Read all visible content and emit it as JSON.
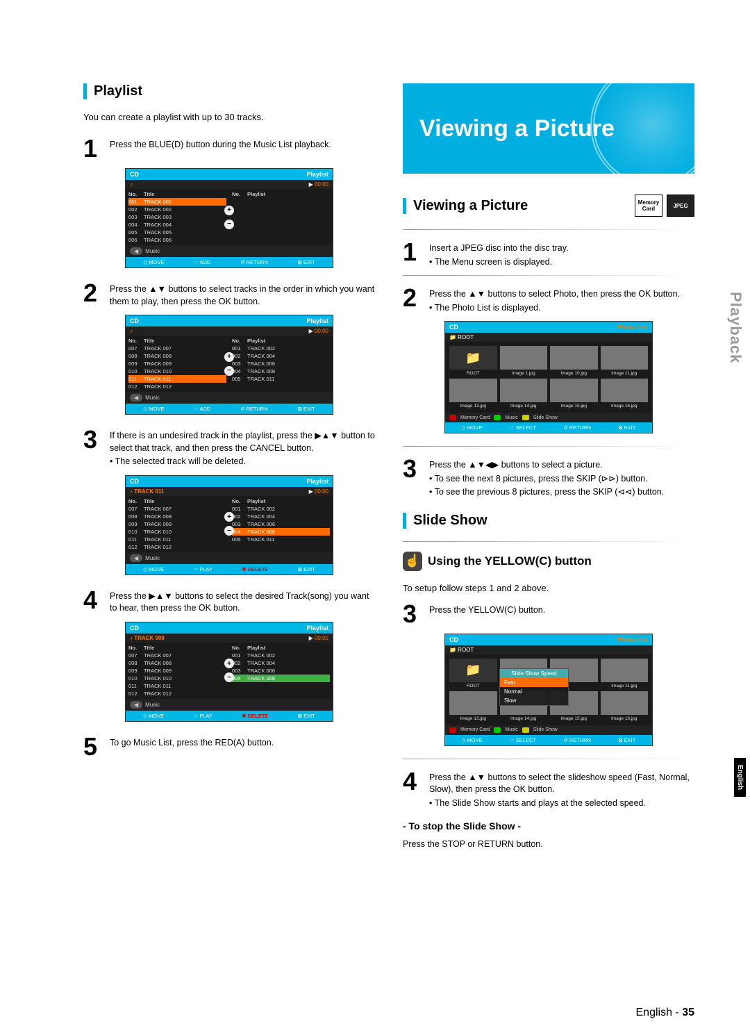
{
  "leftColumn": {
    "sectionTitle": "Playlist",
    "intro": "You can create a playlist with up to 30 tracks.",
    "steps": {
      "s1": {
        "num": "1",
        "text": "Press the BLUE(D) button during the Music List playback."
      },
      "s2": {
        "num": "2",
        "text": "Press the ▲▼ buttons to select tracks in the order in which you want them to play, then press the OK button."
      },
      "s3": {
        "num": "3",
        "text": "If there is an undesired track in the playlist, press the ▶▲▼ button to select that track, and then press the CANCEL button.",
        "bullet": "• The selected track will be deleted."
      },
      "s4": {
        "num": "4",
        "text": "Press the ▶▲▼ buttons to select the desired Track(song) you want to hear, then press the OK button."
      },
      "s5": {
        "num": "5",
        "text": "To go Music List, press the RED(A) button."
      }
    },
    "screenshots": {
      "ss1": {
        "headerLeft": "CD",
        "headerRight": "Playlist",
        "time": "00:00",
        "leftHeader": {
          "no": "No.",
          "title": "Title"
        },
        "rightHeader": {
          "no": "No.",
          "title": "Playlist"
        },
        "leftRows": [
          {
            "n": "001",
            "t": "TRACK 001",
            "sel": true
          },
          {
            "n": "002",
            "t": "TRACK 002"
          },
          {
            "n": "003",
            "t": "TRACK 003"
          },
          {
            "n": "004",
            "t": "TRACK 004"
          },
          {
            "n": "005",
            "t": "TRACK 005"
          },
          {
            "n": "006",
            "t": "TRACK 006"
          }
        ],
        "rightRows": [],
        "musicLabel": "Music",
        "footer": [
          "◇ MOVE",
          "☞ ADD",
          "↺ RETURN",
          "⊠ EXIT"
        ]
      },
      "ss2": {
        "headerLeft": "CD",
        "headerRight": "Playlist",
        "time": "00:00",
        "leftRows": [
          {
            "n": "007",
            "t": "TRACK 007"
          },
          {
            "n": "008",
            "t": "TRACK 008"
          },
          {
            "n": "009",
            "t": "TRACK 009"
          },
          {
            "n": "010",
            "t": "TRACK 010"
          },
          {
            "n": "011",
            "t": "TRACK 011",
            "sel": true
          },
          {
            "n": "012",
            "t": "TRACK 012"
          }
        ],
        "rightRows": [
          {
            "n": "001",
            "t": "TRACK 002"
          },
          {
            "n": "002",
            "t": "TRACK 004"
          },
          {
            "n": "003",
            "t": "TRACK 006"
          },
          {
            "n": "004",
            "t": "TRACK 008"
          },
          {
            "n": "005",
            "t": "TRACK 011"
          }
        ],
        "musicLabel": "Music",
        "footer": [
          "◇ MOVE",
          "☞ ADD",
          "↺ RETURN",
          "⊠ EXIT"
        ]
      },
      "ss3": {
        "headerLeft": "CD",
        "headerRight": "Playlist",
        "trackNow": "TRACK 011",
        "time": "00:00",
        "leftRows": [
          {
            "n": "007",
            "t": "TRACK 007"
          },
          {
            "n": "008",
            "t": "TRACK 008"
          },
          {
            "n": "009",
            "t": "TRACK 009"
          },
          {
            "n": "010",
            "t": "TRACK 010"
          },
          {
            "n": "011",
            "t": "TRACK 011"
          },
          {
            "n": "012",
            "t": "TRACK 012"
          }
        ],
        "rightRows": [
          {
            "n": "001",
            "t": "TRACK 002"
          },
          {
            "n": "002",
            "t": "TRACK 004"
          },
          {
            "n": "003",
            "t": "TRACK 006"
          },
          {
            "n": "004",
            "t": "TRACK 008",
            "sel": true
          },
          {
            "n": "005",
            "t": "TRACK 011"
          }
        ],
        "musicLabel": "Music",
        "footer": [
          "◇ MOVE",
          "☞ PLAY",
          "✖ DELETE",
          "⊠ EXIT"
        ],
        "redIdx": 2
      },
      "ss4": {
        "headerLeft": "CD",
        "headerRight": "Playlist",
        "trackNow": "TRACK 008",
        "time": "00:05",
        "leftRows": [
          {
            "n": "007",
            "t": "TRACK 007"
          },
          {
            "n": "008",
            "t": "TRACK 008"
          },
          {
            "n": "009",
            "t": "TRACK 009"
          },
          {
            "n": "010",
            "t": "TRACK 010"
          },
          {
            "n": "011",
            "t": "TRACK 011"
          },
          {
            "n": "012",
            "t": "TRACK 012"
          }
        ],
        "rightRows": [
          {
            "n": "001",
            "t": "TRACK 002"
          },
          {
            "n": "002",
            "t": "TRACK 004"
          },
          {
            "n": "003",
            "t": "TRACK 006"
          },
          {
            "n": "004",
            "t": "TRACK 008",
            "selg": true
          }
        ],
        "musicLabel": "Music",
        "footer": [
          "◇ MOVE",
          "☞ PLAY",
          "✖ DELETE",
          "⊠ EXIT"
        ],
        "redIdx": 2
      }
    }
  },
  "rightColumn": {
    "banner": "Viewing a Picture",
    "section1": {
      "title": "Viewing a Picture",
      "badges": [
        "Memory Card",
        "JPEG"
      ],
      "steps": {
        "s1": {
          "num": "1",
          "text": "Insert a JPEG disc into the disc tray.",
          "bullet": "• The Menu screen is displayed."
        },
        "s2": {
          "num": "2",
          "text": "Press the ▲▼ buttons to select Photo, then press the OK button.",
          "bullet": "• The Photo List is displayed."
        },
        "s3": {
          "num": "3",
          "text": "Press the ▲▼◀▶ buttons to select a picture.",
          "b1": "• To see the next 8 pictures, press the SKIP (⊳⊳) button.",
          "b2": "• To see the previous 8 pictures, press the SKIP (⊲⊲) button."
        }
      },
      "photoList": {
        "headerLeft": "CD",
        "headerRight": "Photo List",
        "rootLabel": "ROOT",
        "thumbs": [
          "ROOT",
          "Image 1.jpg",
          "Image 10.jpg",
          "Image 11.jpg",
          "Image 13.jpg",
          "Image 14.jpg",
          "Image 15.jpg",
          "Image 16.jpg"
        ],
        "legend": [
          "A",
          "Memory Card",
          "B",
          "Music",
          "C",
          "Slide Show"
        ],
        "footer": [
          "◇ MOVE",
          "☞ SELECT",
          "↺ RETURN",
          "⊠ EXIT"
        ]
      }
    },
    "section2": {
      "title": "Slide Show",
      "subTitle": "Using the YELLOW(C) button",
      "intro": "To setup follow steps 1 and 2 above.",
      "steps": {
        "s3": {
          "num": "3",
          "text": "Press the YELLOW(C) button."
        },
        "s4": {
          "num": "4",
          "text": "Press the ▲▼ buttons to select the slideshow speed (Fast, Normal, Slow), then press the OK button.",
          "bullet": "• The Slide Show starts and plays at the selected speed."
        }
      },
      "slideShot": {
        "headerLeft": "CD",
        "headerRight": "Photo List",
        "rootLabel": "ROOT",
        "speedTitle": "Slide Show Speed",
        "speeds": [
          "Fast",
          "Normal",
          "Slow"
        ],
        "thumbs": [
          "ROOT",
          "",
          "",
          "Image 11.jpg",
          "Image 13.jpg",
          "Image 14.jpg",
          "Image 15.jpg",
          "Image 16.jpg"
        ],
        "legend": [
          "A",
          "Memory Card",
          "B",
          "Music",
          "C",
          "Slide Show"
        ],
        "footer": [
          "◇ MOVE",
          "☞ SELECT",
          "↺ RETURN",
          "⊠ EXIT"
        ]
      },
      "stopHeading": "- To stop the Slide Show -",
      "stopText": "Press the STOP or RETURN button."
    },
    "sideTab": "Playback",
    "sideTabEng": "English"
  },
  "pageNumber": {
    "lang": "English",
    "sep": " - ",
    "num": "35"
  },
  "colors": {
    "accent": "#00aee0",
    "orange": "#ff6b00",
    "red": "#e00000",
    "grayText": "#9a9a9a"
  }
}
